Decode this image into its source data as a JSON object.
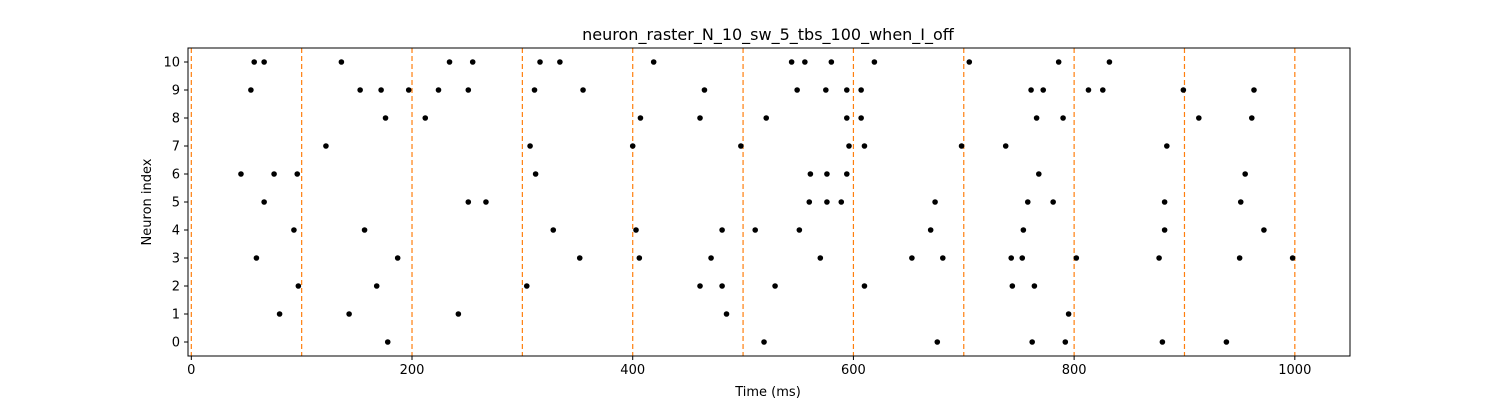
{
  "chart_data": {
    "type": "scatter",
    "title": "neuron_raster_N_10_sw_5_tbs_100_when_I_off",
    "xlabel": "Time (ms)",
    "ylabel": "Neuron index",
    "xlim": [
      -3,
      1050
    ],
    "ylim": [
      -0.5,
      10.5
    ],
    "xticks": [
      0,
      200,
      400,
      600,
      800,
      1000
    ],
    "yticks": [
      0,
      1,
      2,
      3,
      4,
      5,
      6,
      7,
      8,
      9,
      10
    ],
    "grid": false,
    "marker_color": "#000000",
    "vline_color": "#ff7f0e",
    "vlines": [
      0,
      100,
      200,
      300,
      400,
      500,
      600,
      700,
      800,
      900,
      1000
    ],
    "spikes": [
      {
        "neuron": 10,
        "times": [
          57,
          66,
          136,
          234,
          255,
          316,
          334,
          419,
          544,
          556,
          580,
          619,
          705,
          786,
          832
        ]
      },
      {
        "neuron": 9,
        "times": [
          54,
          153,
          172,
          197,
          224,
          251,
          311,
          355,
          465,
          549,
          575,
          594,
          607,
          761,
          772,
          813,
          826,
          899,
          963
        ]
      },
      {
        "neuron": 8,
        "times": [
          176,
          212,
          407,
          461,
          521,
          594,
          607,
          766,
          790,
          913,
          961
        ]
      },
      {
        "neuron": 7,
        "times": [
          122,
          307,
          400,
          498,
          596,
          610,
          698,
          738,
          884
        ]
      },
      {
        "neuron": 6,
        "times": [
          45,
          75,
          96,
          312,
          561,
          576,
          594,
          768,
          955
        ]
      },
      {
        "neuron": 5,
        "times": [
          66,
          251,
          267,
          560,
          576,
          589,
          674,
          758,
          781,
          882,
          951
        ]
      },
      {
        "neuron": 4,
        "times": [
          93,
          157,
          328,
          403,
          481,
          511,
          551,
          670,
          754,
          882,
          972
        ]
      },
      {
        "neuron": 3,
        "times": [
          59,
          187,
          352,
          406,
          471,
          570,
          653,
          681,
          743,
          753,
          802,
          877,
          950,
          998
        ]
      },
      {
        "neuron": 2,
        "times": [
          97,
          168,
          304,
          461,
          481,
          529,
          610,
          744,
          764
        ]
      },
      {
        "neuron": 1,
        "times": [
          80,
          143,
          242,
          485,
          795
        ]
      },
      {
        "neuron": 0,
        "times": [
          178,
          519,
          676,
          762,
          792,
          880,
          938
        ]
      }
    ]
  }
}
